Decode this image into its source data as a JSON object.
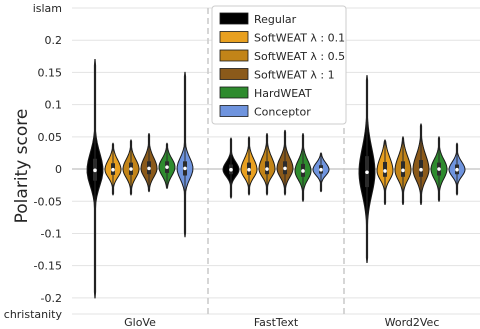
{
  "chart_data": {
    "type": "violin",
    "ylabel": "Polarity score",
    "ylim": [
      -0.225,
      0.25
    ],
    "y_ticks": [
      {
        "value": 0.25,
        "label": "islam"
      },
      {
        "value": 0.2,
        "label": "0.2"
      },
      {
        "value": 0.15,
        "label": "0.15"
      },
      {
        "value": 0.1,
        "label": "0.1"
      },
      {
        "value": 0.05,
        "label": "0.05"
      },
      {
        "value": 0.0,
        "label": "0"
      },
      {
        "value": -0.05,
        "label": "-0.05"
      },
      {
        "value": -0.1,
        "label": "-0.1"
      },
      {
        "value": -0.15,
        "label": "-0.15"
      },
      {
        "value": -0.2,
        "label": "-0.2"
      },
      {
        "value": -0.225,
        "label": "christanity"
      }
    ],
    "categories": [
      "GloVe",
      "FastText",
      "Word2Vec"
    ],
    "grid": true,
    "legend_position": "top-center",
    "series": [
      {
        "name": "Regular",
        "color": "#000000",
        "groups": [
          {
            "min": -0.2,
            "q1": -0.018,
            "median": -0.002,
            "q3": 0.016,
            "max": 0.17
          },
          {
            "min": -0.045,
            "q1": -0.008,
            "median": -0.001,
            "q3": 0.007,
            "max": 0.048
          },
          {
            "min": -0.145,
            "q1": -0.028,
            "median": -0.005,
            "q3": 0.02,
            "max": 0.145
          }
        ]
      },
      {
        "name": "SoftWEAT λ : 0.1",
        "color": "#e8a020",
        "groups": [
          {
            "min": -0.04,
            "q1": -0.009,
            "median": -0.001,
            "q3": 0.009,
            "max": 0.04
          },
          {
            "min": -0.04,
            "q1": -0.009,
            "median": -0.001,
            "q3": 0.01,
            "max": 0.05
          },
          {
            "min": -0.055,
            "q1": -0.012,
            "median": -0.003,
            "q3": 0.011,
            "max": 0.045
          }
        ]
      },
      {
        "name": "SoftWEAT λ : 0.5",
        "color": "#c28418",
        "groups": [
          {
            "min": -0.04,
            "q1": -0.009,
            "median": 0.0,
            "q3": 0.01,
            "max": 0.045
          },
          {
            "min": -0.04,
            "q1": -0.008,
            "median": 0.0,
            "q3": 0.012,
            "max": 0.055
          },
          {
            "min": -0.055,
            "q1": -0.012,
            "median": -0.002,
            "q3": 0.012,
            "max": 0.05
          }
        ]
      },
      {
        "name": "SoftWEAT λ : 1",
        "color": "#8b5a1a",
        "groups": [
          {
            "min": -0.035,
            "q1": -0.008,
            "median": 0.001,
            "q3": 0.012,
            "max": 0.055
          },
          {
            "min": -0.04,
            "q1": -0.008,
            "median": 0.001,
            "q3": 0.012,
            "max": 0.06
          },
          {
            "min": -0.055,
            "q1": -0.012,
            "median": -0.001,
            "q3": 0.014,
            "max": 0.07
          }
        ]
      },
      {
        "name": "HardWEAT",
        "color": "#2e8b2e",
        "groups": [
          {
            "min": -0.03,
            "q1": -0.006,
            "median": 0.003,
            "q3": 0.012,
            "max": 0.04
          },
          {
            "min": -0.05,
            "q1": -0.012,
            "median": -0.003,
            "q3": 0.008,
            "max": 0.055
          },
          {
            "min": -0.05,
            "q1": -0.01,
            "median": 0.0,
            "q3": 0.01,
            "max": 0.05
          }
        ]
      },
      {
        "name": "Conceptor",
        "color": "#6f94de",
        "groups": [
          {
            "min": -0.105,
            "q1": -0.01,
            "median": 0.001,
            "q3": 0.012,
            "max": 0.15
          },
          {
            "min": -0.035,
            "q1": -0.007,
            "median": -0.001,
            "q3": 0.006,
            "max": 0.025
          },
          {
            "min": -0.04,
            "q1": -0.008,
            "median": -0.001,
            "q3": 0.007,
            "max": 0.04
          }
        ]
      }
    ]
  }
}
